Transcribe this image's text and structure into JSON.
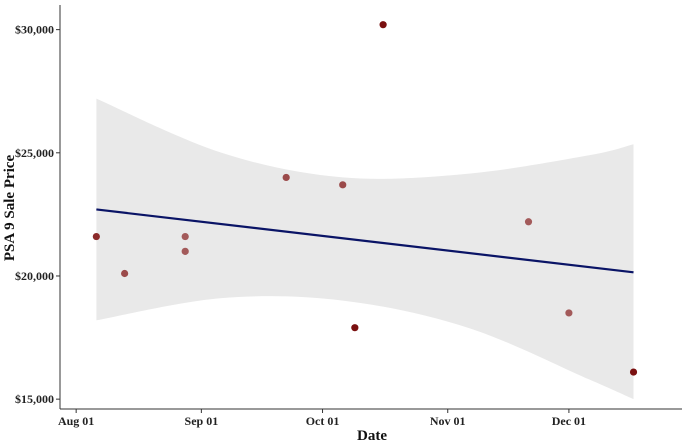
{
  "chart_data": {
    "type": "scatter",
    "title": "",
    "xlabel": "Date",
    "ylabel": "PSA 9 Sale Price",
    "x_ticks": [
      "Aug 01",
      "Sep 01",
      "Oct 01",
      "Nov 01",
      "Dec 01"
    ],
    "x_tick_dates": [
      "2021-08-01",
      "2021-09-01",
      "2021-10-01",
      "2021-11-01",
      "2021-12-01"
    ],
    "y_ticks": [
      "$15,000",
      "$20,000",
      "$25,000",
      "$30,000"
    ],
    "y_tick_values": [
      15000,
      20000,
      25000,
      30000
    ],
    "xlim": [
      "2021-07-28",
      "2021-12-29"
    ],
    "ylim": [
      14600,
      31000
    ],
    "grid": false,
    "points": [
      {
        "x": "2021-08-06",
        "y": 21600,
        "color": "#8b2a2a"
      },
      {
        "x": "2021-08-13",
        "y": 20100,
        "color": "#9b4a4a"
      },
      {
        "x": "2021-08-28",
        "y": 21600,
        "color": "#a35a5a"
      },
      {
        "x": "2021-08-28",
        "y": 21000,
        "color": "#a35a5a"
      },
      {
        "x": "2021-09-22",
        "y": 24000,
        "color": "#9b4a4a"
      },
      {
        "x": "2021-10-06",
        "y": 23700,
        "color": "#9b4a4a"
      },
      {
        "x": "2021-10-09",
        "y": 17900,
        "color": "#7a1010"
      },
      {
        "x": "2021-10-16",
        "y": 30200,
        "color": "#7a1010"
      },
      {
        "x": "2021-11-21",
        "y": 22200,
        "color": "#a35a5a"
      },
      {
        "x": "2021-12-01",
        "y": 18500,
        "color": "#a35a5a"
      },
      {
        "x": "2021-12-17",
        "y": 16100,
        "color": "#7a1010"
      }
    ],
    "trend_line": {
      "x": [
        "2021-08-06",
        "2021-12-17"
      ],
      "y": [
        22700,
        20150
      ],
      "color": "#0a1466"
    },
    "confidence_band": {
      "x": [
        "2021-08-06",
        "2021-09-06",
        "2021-10-06",
        "2021-11-06",
        "2021-12-06",
        "2021-12-17"
      ],
      "upper": [
        27200,
        25000,
        24000,
        24150,
        24900,
        25350
      ],
      "lower": [
        18200,
        19100,
        19000,
        17900,
        15800,
        15000
      ],
      "color": "#e9e9e9"
    },
    "colors": {
      "axis": "#333333",
      "background": "#ffffff"
    }
  }
}
